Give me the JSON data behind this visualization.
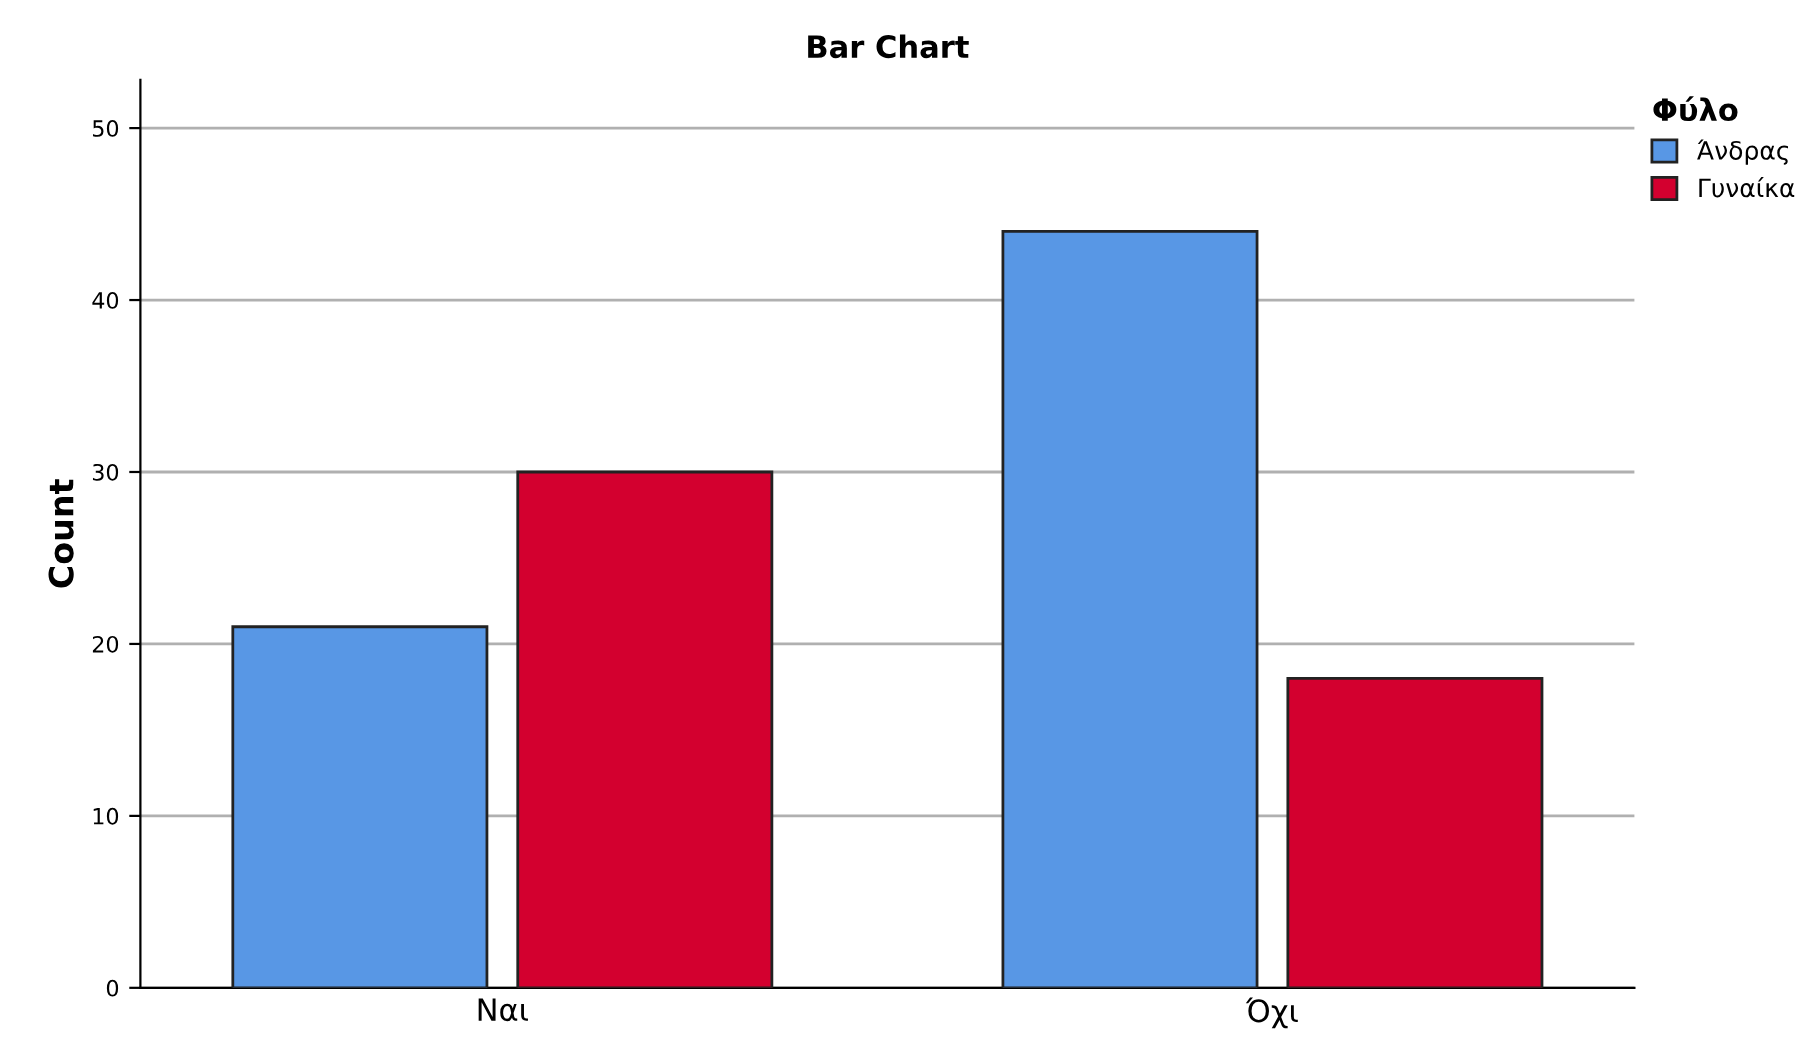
{
  "chart_data": {
    "type": "bar",
    "title": "Bar Chart",
    "ylabel": "Count",
    "legend_title": "Φύλο",
    "categories": [
      "Ναι",
      "Όχι"
    ],
    "series": [
      {
        "name": "Άνδρας",
        "color": "#5897e5",
        "values": [
          21,
          44
        ]
      },
      {
        "name": "Γυναίκα",
        "color": "#d3002f",
        "values": [
          30,
          18
        ]
      }
    ],
    "ylim": [
      0,
      52.8
    ],
    "yticks": [
      0,
      10,
      20,
      30,
      40,
      50
    ],
    "grid": "y",
    "legend": "top right"
  }
}
